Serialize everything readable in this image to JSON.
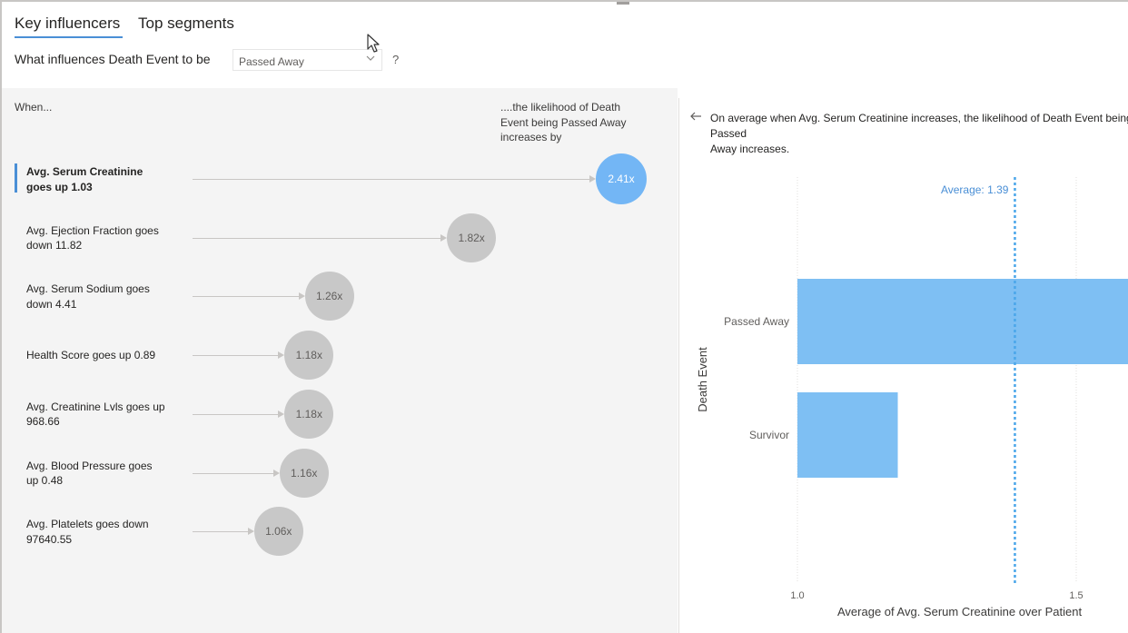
{
  "tabs": {
    "key_influencers": "Key influencers",
    "top_segments": "Top segments"
  },
  "question": {
    "label": "What influences Death Event to be",
    "value": "Passed Away",
    "suffix": "?"
  },
  "columns": {
    "when": "When...",
    "likelihood_line1": "....the likelihood of Death",
    "likelihood_line2": "Event being Passed Away",
    "likelihood_line3": "increases by"
  },
  "influencers": [
    {
      "line1": "Avg. Serum Creatinine",
      "line2": "goes up 1.03",
      "multiplier": 2.41,
      "label": "2.41x",
      "selected": true
    },
    {
      "line1": "Avg. Ejection Fraction goes",
      "line2": "down 11.82",
      "multiplier": 1.82,
      "label": "1.82x",
      "selected": false
    },
    {
      "line1": "Avg. Serum Sodium goes",
      "line2": "down 4.41",
      "multiplier": 1.26,
      "label": "1.26x",
      "selected": false
    },
    {
      "line1": "Health Score goes up 0.89",
      "line2": "",
      "multiplier": 1.18,
      "label": "1.18x",
      "selected": false
    },
    {
      "line1": "Avg. Creatinine Lvls goes up",
      "line2": "968.66",
      "multiplier": 1.18,
      "label": "1.18x",
      "selected": false
    },
    {
      "line1": "Avg. Blood Pressure goes",
      "line2": "up 0.48",
      "multiplier": 1.16,
      "label": "1.16x",
      "selected": false
    },
    {
      "line1": "Avg. Platelets goes down",
      "line2": "97640.55",
      "multiplier": 1.06,
      "label": "1.06x",
      "selected": false
    }
  ],
  "detail": {
    "line1": "On average when Avg. Serum Creatinine increases, the likelihood of Death Event being Passed",
    "line2": "Away increases."
  },
  "chart_data": {
    "type": "bar",
    "orientation": "horizontal",
    "categories": [
      "Passed Away",
      "Survivor"
    ],
    "values": [
      2.0,
      1.18
    ],
    "xlabel": "Average of Avg. Serum Creatinine over Patient",
    "ylabel": "Death Event",
    "x_ticks": [
      1.0,
      1.5
    ],
    "x_tick_labels": [
      "1.0",
      "1.5"
    ],
    "xlim": [
      1.0,
      2.0
    ],
    "reference_line": {
      "label": "Average: 1.39",
      "value": 1.39
    },
    "bar_color": "#7ebff3",
    "grid": true
  },
  "colors": {
    "accent": "#4a8fd6",
    "selected_bubble": "#73b6f5",
    "bubble": "#c8c8c8",
    "panel_bg": "#f4f4f4"
  }
}
